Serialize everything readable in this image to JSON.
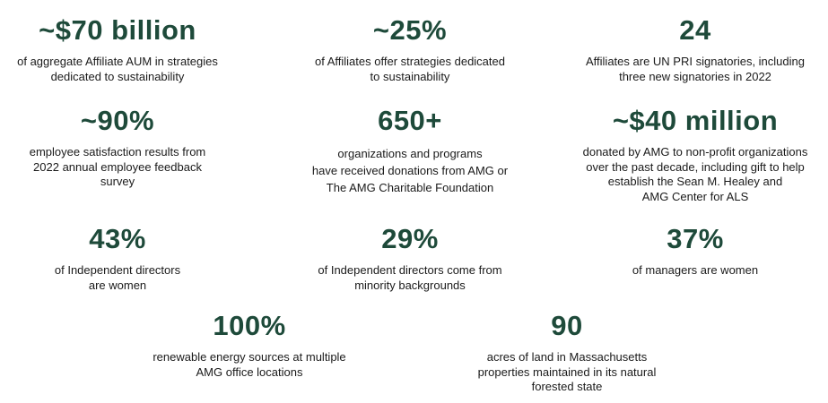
{
  "accent_color": "#1e4a3a",
  "stats": [
    {
      "value": "~$70 billion",
      "desc": "of aggregate Affiliate AUM  in strategies\ndedicated to sustainability"
    },
    {
      "value": "~25%",
      "desc": "of Affiliates offer strategies dedicated\nto sustainability"
    },
    {
      "value": "24",
      "desc": "Affiliates are UN  PRI signatories, including\nthree new signatories in 2022"
    },
    {
      "value": "~90%",
      "desc": "employee satisfaction results from\n2022 annual employee feedback\nsurvey"
    },
    {
      "value": "650+",
      "desc": "organizations and programs\nhave received donations from AMG  or\nThe AMG  Charitable Foundation"
    },
    {
      "value": "~$40 million",
      "desc": "donated by AMG  to non-profit organizations\nover the past decade, including gift to help\nestablish the Sean M.  Healey and\nAMG  Center for ALS"
    },
    {
      "value": "43%",
      "desc": "of Independent directors\nare women"
    },
    {
      "value": "29%",
      "desc": "of Independent directors come from\nminority backgrounds"
    },
    {
      "value": "37%",
      "desc": "of managers are women"
    },
    {
      "value": "100%",
      "desc": "renewable energy sources at multiple\nAMG office locations"
    },
    {
      "value": "90",
      "desc": "acres of land in Massachusetts\nproperties maintained in its natural\nforested state"
    }
  ]
}
